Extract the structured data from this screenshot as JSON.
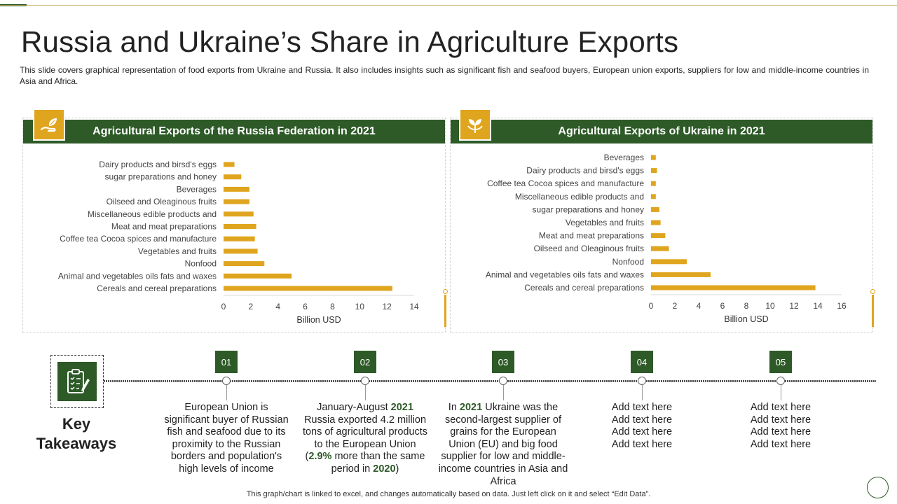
{
  "slide": {
    "title": "Russia and Ukraine’s Share in Agriculture Exports",
    "subtitle": "This slide covers graphical representation of food exports from Ukraine and Russia. It also includes insights such as significant fish and seafood buyers, European union exports, suppliers for low and middle-income countries in Asia and Africa.",
    "footer": "This graph/chart is linked to excel, and changes automatically based on data. Just left click on it and select “Edit Data”."
  },
  "colors": {
    "accent": "#E0A51E",
    "brand_green": "#2D5A27"
  },
  "panels": [
    {
      "header": "Agricultural Exports of the Russia Federation in 2021",
      "icon": "hand-leaf-icon"
    },
    {
      "header": "Agricultural Exports of Ukraine in 2021",
      "icon": "plant-sprout-icon"
    }
  ],
  "chart_data": [
    {
      "type": "bar",
      "orientation": "horizontal",
      "title": "Agricultural Exports of the Russia Federation in 2021",
      "categories": [
        "Dairy products and birsd's eggs",
        "sugar preparations and honey",
        "Beverages",
        "Oilseed and Oleaginous fruits",
        "Miscellaneous edible products and",
        "Meat and meat preparations",
        "Coffee tea Cocoa spices and manufacture",
        "Vegetables and fruits",
        "Nonfood",
        "Animal and vegetables oils fats and waxes",
        "Cereals and cereal preparations"
      ],
      "values": [
        0.8,
        1.3,
        1.9,
        1.9,
        2.2,
        2.4,
        2.3,
        2.5,
        3.0,
        5.0,
        12.4
      ],
      "xlabel": "Billion USD",
      "ylabel": "",
      "xlim": [
        0,
        14
      ],
      "xticks": [
        "0",
        "2",
        "4",
        "6",
        "8",
        "10",
        "12",
        "14"
      ],
      "bar_color": "#E0A51E",
      "grid": false,
      "legend": "none"
    },
    {
      "type": "bar",
      "orientation": "horizontal",
      "title": "Agricultural Exports of Ukraine in 2021",
      "categories": [
        "Beverages",
        "Dairy products and birsd's eggs",
        "Coffee tea Cocoa spices and manufacture",
        "Miscellaneous edible products and",
        "sugar preparations and honey",
        "Vegetables and fruits",
        "Meat and meat preparations",
        "Oilseed and Oleaginous fruits",
        "Nonfood",
        "Animal and vegetables oils fats and waxes",
        "Cereals and cereal preparations"
      ],
      "values": [
        0.4,
        0.5,
        0.4,
        0.4,
        0.7,
        0.8,
        1.2,
        1.5,
        3.0,
        5.0,
        13.8
      ],
      "xlabel": "Billion USD",
      "ylabel": "",
      "xlim": [
        0,
        16
      ],
      "xticks": [
        "0",
        "2",
        "4",
        "6",
        "8",
        "10",
        "12",
        "14",
        "16"
      ],
      "bar_color": "#E0A51E",
      "grid": false,
      "legend": "none"
    }
  ],
  "takeaways": {
    "label": "Key Takeaways",
    "icon": "clipboard-checklist-icon",
    "steps": [
      {
        "num": "01",
        "text": [
          "European Union is significant buyer of Russian fish and seafood  due to its proximity to the Russian borders and population's high levels of income"
        ]
      },
      {
        "num": "02",
        "text": [
          "January-August ",
          "2021",
          " Russia exported 4.2 million tons of agricultural products to the European Union (",
          "2.9%",
          " more than the same period in ",
          "2020",
          ")"
        ]
      },
      {
        "num": "03",
        "text": [
          "In ",
          "2021",
          " Ukraine was the second-largest supplier of grains for the European Union (EU) and big food supplier for low and middle-income countries in Asia and Africa"
        ]
      },
      {
        "num": "04",
        "text": [
          "Add text here",
          "Add text here",
          "Add text here",
          "Add text here"
        ]
      },
      {
        "num": "05",
        "text": [
          "Add text here",
          "Add text here",
          "Add text here",
          "Add text here"
        ]
      }
    ]
  }
}
